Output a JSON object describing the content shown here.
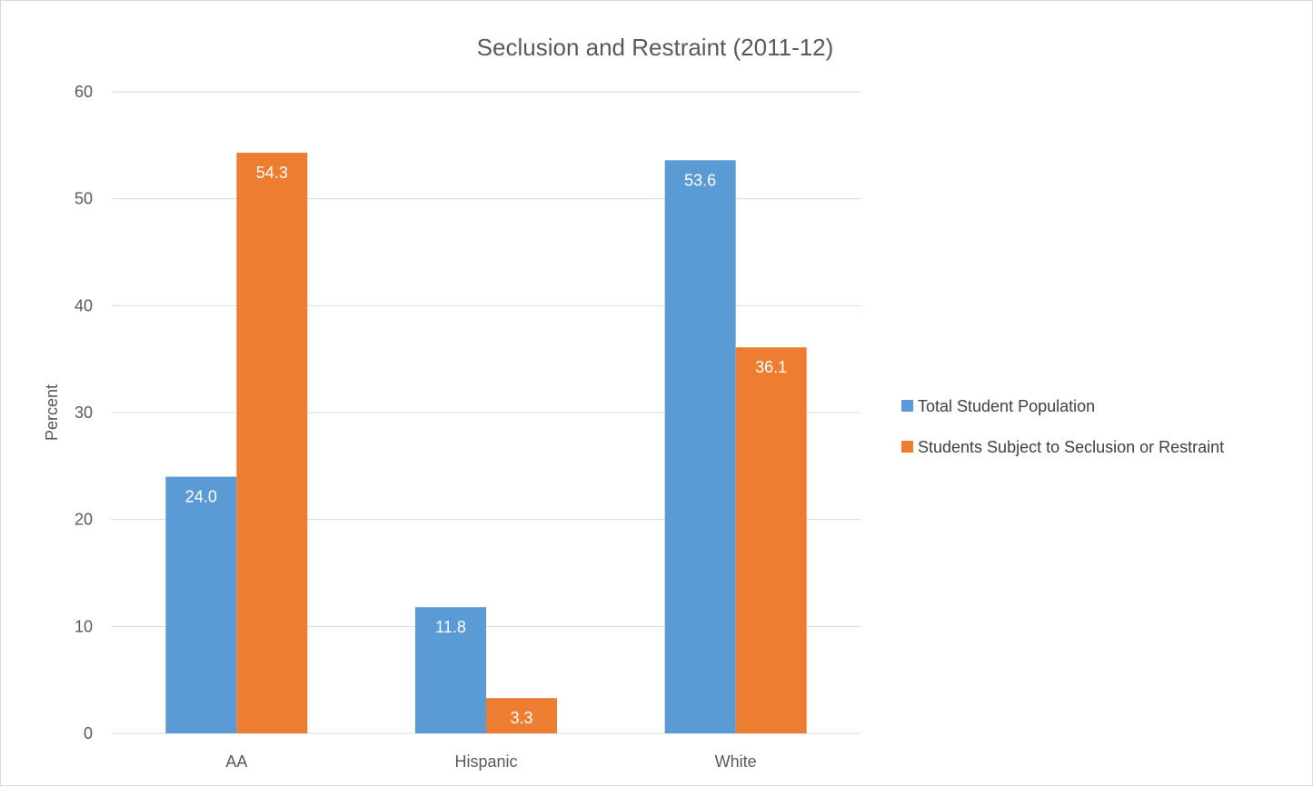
{
  "chart_data": {
    "type": "bar",
    "title": "Seclusion and Restraint (2011-12)",
    "xlabel": "",
    "ylabel": "Percent",
    "ylim": [
      0,
      60
    ],
    "yticks": [
      0,
      10,
      20,
      30,
      40,
      50,
      60
    ],
    "grid": true,
    "legend_position": "right",
    "categories": [
      "AA",
      "Hispanic",
      "White"
    ],
    "series": [
      {
        "name": "Total Student Population",
        "color": "#5b9bd5",
        "values": [
          24.0,
          11.8,
          53.6
        ],
        "labels": [
          "24.0",
          "11.8",
          "53.6"
        ]
      },
      {
        "name": "Students Subject to Seclusion or Restraint",
        "color": "#ed7d31",
        "values": [
          54.3,
          3.3,
          36.1
        ],
        "labels": [
          "54.3",
          "3.3",
          "36.1"
        ]
      }
    ]
  }
}
